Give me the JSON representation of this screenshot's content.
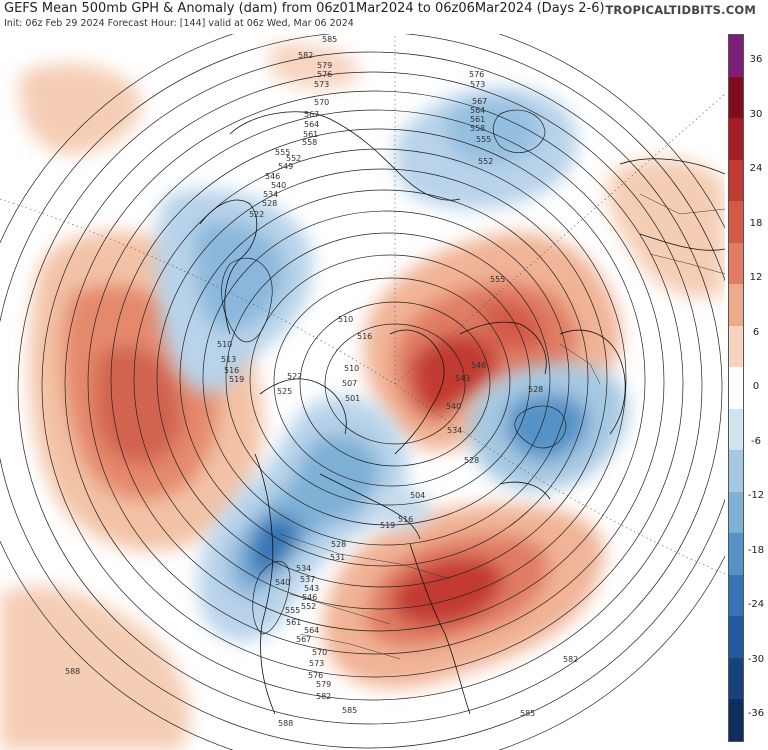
{
  "header": {
    "title": "GEFS Mean 500mb GPH & Anomaly (dam) from 06z01Mar2024 to 06z06Mar2024 (Days 2-6)",
    "subtitle": "Init: 06z Feb 29 2024   Forecast Hour: [144]   valid at 06z Wed, Mar 06 2024",
    "brand": "TROPICALTIDBITS.COM"
  },
  "colorbar": {
    "ticks": [
      "36",
      "30",
      "24",
      "18",
      "12",
      "6",
      "0",
      "-6",
      "-12",
      "-18",
      "-24",
      "-30",
      "-36"
    ],
    "colors": [
      "#7b1f7b",
      "#800c1c",
      "#a51d24",
      "#c23b32",
      "#d35a47",
      "#e07d64",
      "#edaa8c",
      "#f7d4c0",
      "#ffffff",
      "#d2e3f0",
      "#a6c8e2",
      "#7fb0d6",
      "#5593c7",
      "#3574b3",
      "#235b9c",
      "#17437d",
      "#0e2e5e"
    ]
  },
  "map": {
    "anomaly_regions": [
      {
        "label": "Gulf of Alaska / NE Pacific warm",
        "sign": "positive",
        "max": 18
      },
      {
        "label": "Eastern North America warm",
        "sign": "positive",
        "max": 24
      },
      {
        "label": "Greenland / Canadian Arctic warm",
        "sign": "positive",
        "max": 24
      },
      {
        "label": "Northern Europe / Scandinavia warm",
        "sign": "positive",
        "max": 12
      },
      {
        "label": "Western North America cold",
        "sign": "negative",
        "max": -24
      },
      {
        "label": "Kamchatka / Bering cold",
        "sign": "negative",
        "max": -18
      },
      {
        "label": "Central Asia cold",
        "sign": "negative",
        "max": -12
      },
      {
        "label": "Hudson Bay cold",
        "sign": "negative",
        "max": -12
      }
    ],
    "contour_labels": [
      "585",
      "582",
      "579",
      "576",
      "573",
      "570",
      "567",
      "564",
      "561",
      "558",
      "555",
      "552",
      "549",
      "546",
      "540",
      "534",
      "528",
      "522",
      "510",
      "513",
      "516",
      "519",
      "525",
      "507",
      "501",
      "504",
      "555",
      "543",
      "540",
      "528",
      "531",
      "534",
      "537",
      "546",
      "552",
      "558",
      "561",
      "564",
      "567",
      "570",
      "573",
      "576",
      "579",
      "582",
      "585",
      "588",
      "588",
      "582",
      "585",
      "576",
      "573",
      "567",
      "564",
      "561",
      "558",
      "555",
      "552",
      "555",
      "543",
      "528",
      "558"
    ]
  }
}
